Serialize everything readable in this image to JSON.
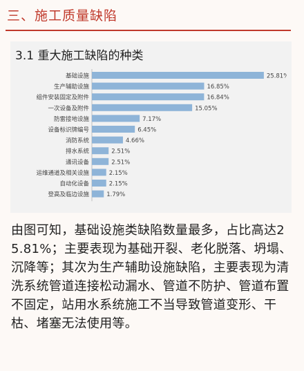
{
  "section": {
    "title": "三、施工质量缺陷"
  },
  "subsection": {
    "title": "3.1 重大施工缺陷的种类"
  },
  "chart_data": {
    "type": "bar",
    "orientation": "horizontal",
    "categories": [
      "基础设施",
      "生产辅助设施",
      "组件安装固定及附件",
      "一次设备及附件",
      "防雷接地设施",
      "设备标识牌编号",
      "消防系统",
      "排水系统",
      "通讯设备",
      "运维通道及相关设施",
      "自动化设备",
      "登高及临边设施"
    ],
    "values": [
      25.81,
      16.85,
      16.84,
      15.05,
      7.17,
      6.45,
      4.66,
      2.51,
      2.51,
      2.15,
      2.15,
      1.79
    ],
    "value_labels": [
      "25.81%",
      "16.85%",
      "16.84%",
      "15.05%",
      "7.17%",
      "6.45%",
      "4.66%",
      "2.51%",
      "2.51%",
      "2.15%",
      "2.15%",
      "1.79%"
    ],
    "xlim": [
      0,
      28
    ],
    "bar_color": "#8eb4d8",
    "grid": false
  },
  "body": {
    "text": "由图可知，基础设施类缺陷数量最多，占比高达25.81%；主要表现为基础开裂、老化脱落、坍塌、沉降等；其次为生产辅助设施缺陷，主要表现为清洗系统管道连接松动漏水、管道不防护、管道布置不固定，站用水系统施工不当导致管道变形、干枯、堵塞无法使用等。"
  }
}
